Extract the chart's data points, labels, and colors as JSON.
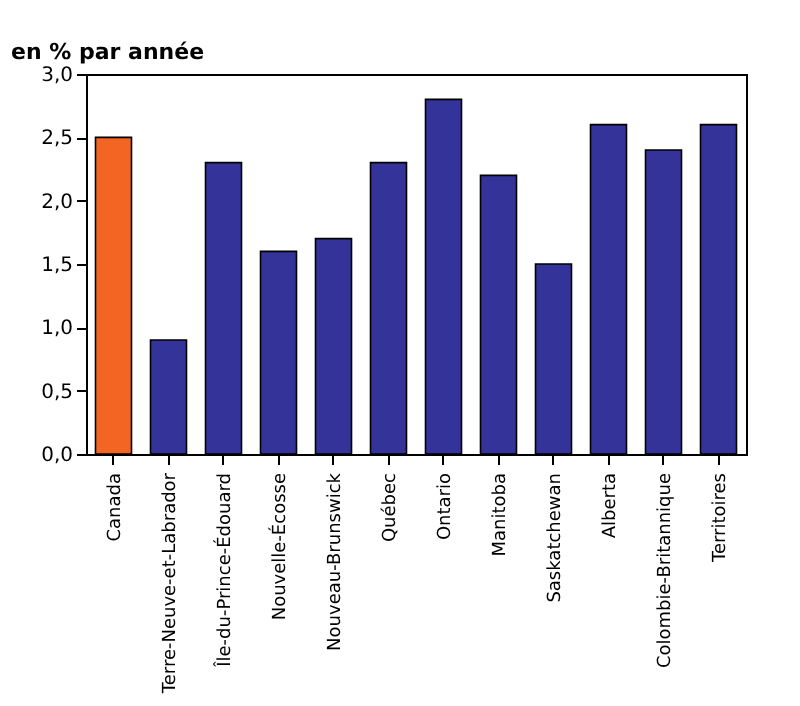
{
  "chart_data": {
    "type": "bar",
    "ylabel": "en % par année",
    "categories": [
      "Canada",
      "Terre-Neuve-et-Labrador",
      "Île-du-Prince-Édouard",
      "Nouvelle-Écosse",
      "Nouveau-Brunswick",
      "Québec",
      "Ontario",
      "Manitoba",
      "Saskatchewan",
      "Alberta",
      "Colombie-Britannique",
      "Territoires"
    ],
    "values": [
      2.5,
      0.9,
      2.3,
      1.6,
      1.7,
      2.3,
      2.8,
      2.2,
      1.5,
      2.6,
      2.4,
      2.6
    ],
    "colors": [
      "#f26522",
      "#333399",
      "#333399",
      "#333399",
      "#333399",
      "#333399",
      "#333399",
      "#333399",
      "#333399",
      "#333399",
      "#333399",
      "#333399"
    ],
    "ylim": [
      0,
      3
    ],
    "yticks": [
      {
        "value": 0,
        "label": "0,0"
      },
      {
        "value": 0.5,
        "label": "0,5"
      },
      {
        "value": 1,
        "label": "1,0"
      },
      {
        "value": 1.5,
        "label": "1,5"
      },
      {
        "value": 2,
        "label": "2,0"
      },
      {
        "value": 2.5,
        "label": "2,5"
      },
      {
        "value": 3,
        "label": "3,0"
      }
    ],
    "grid": false
  }
}
